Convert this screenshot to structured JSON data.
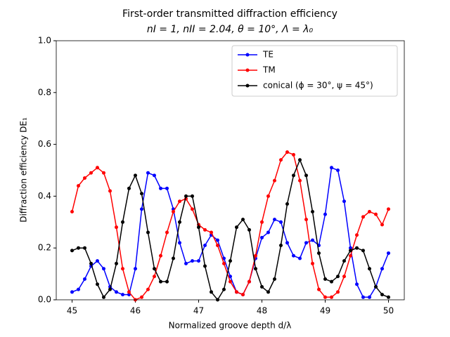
{
  "chart_data": {
    "type": "line",
    "title": "First-order transmitted diffraction efficiency",
    "subtitle": "nI = 1, nII = 2.04, θ = 10°, Λ = λ₀",
    "xlabel": "Normalized groove depth d/λ",
    "ylabel": "Diffraction efficiency DE₁",
    "x": [
      45.0,
      45.1,
      45.2,
      45.3,
      45.4,
      45.5,
      45.6,
      45.7,
      45.8,
      45.9,
      46.0,
      46.1,
      46.2,
      46.3,
      46.4,
      46.5,
      46.6,
      46.7,
      46.8,
      46.9,
      47.0,
      47.1,
      47.2,
      47.3,
      47.4,
      47.5,
      47.6,
      47.7,
      47.8,
      47.9,
      48.0,
      48.1,
      48.2,
      48.3,
      48.4,
      48.5,
      48.6,
      48.7,
      48.8,
      48.9,
      49.0,
      49.1,
      49.2,
      49.3,
      49.4,
      49.5,
      49.6,
      49.7,
      49.8,
      49.9,
      50.0
    ],
    "series": [
      {
        "name": "TE",
        "color": "#0000ff",
        "values": [
          0.03,
          0.04,
          0.08,
          0.13,
          0.15,
          0.12,
          0.05,
          0.03,
          0.02,
          0.02,
          0.12,
          0.35,
          0.49,
          0.48,
          0.43,
          0.43,
          0.35,
          0.22,
          0.14,
          0.15,
          0.15,
          0.21,
          0.25,
          0.23,
          0.16,
          0.09,
          0.03,
          0.02,
          0.07,
          0.16,
          0.24,
          0.26,
          0.31,
          0.3,
          0.22,
          0.17,
          0.16,
          0.22,
          0.23,
          0.21,
          0.33,
          0.51,
          0.5,
          0.38,
          0.2,
          0.06,
          0.01,
          0.01,
          0.05,
          0.12,
          0.18
        ]
      },
      {
        "name": "TM",
        "color": "#ff0000",
        "values": [
          0.34,
          0.44,
          0.47,
          0.49,
          0.51,
          0.49,
          0.42,
          0.28,
          0.12,
          0.03,
          0.0,
          0.01,
          0.04,
          0.09,
          0.17,
          0.26,
          0.34,
          0.38,
          0.39,
          0.35,
          0.29,
          0.27,
          0.26,
          0.21,
          0.14,
          0.07,
          0.03,
          0.02,
          0.07,
          0.17,
          0.3,
          0.4,
          0.46,
          0.54,
          0.57,
          0.56,
          0.46,
          0.31,
          0.14,
          0.04,
          0.01,
          0.01,
          0.03,
          0.09,
          0.17,
          0.25,
          0.32,
          0.34,
          0.33,
          0.29,
          0.35
        ]
      },
      {
        "name": "conical  (ϕ = 30°, ψ = 45°)",
        "color": "#000000",
        "values": [
          0.19,
          0.2,
          0.2,
          0.14,
          0.06,
          0.01,
          0.04,
          0.14,
          0.3,
          0.43,
          0.48,
          0.41,
          0.26,
          0.12,
          0.07,
          0.07,
          0.16,
          0.3,
          0.4,
          0.4,
          0.28,
          0.13,
          0.03,
          0.0,
          0.04,
          0.15,
          0.28,
          0.31,
          0.27,
          0.12,
          0.05,
          0.03,
          0.08,
          0.21,
          0.37,
          0.48,
          0.54,
          0.48,
          0.34,
          0.18,
          0.08,
          0.07,
          0.09,
          0.15,
          0.19,
          0.2,
          0.19,
          0.12,
          0.05,
          0.02,
          0.01
        ]
      }
    ],
    "xlim": [
      44.75,
      50.25
    ],
    "xticks": [
      45,
      46,
      47,
      48,
      49,
      50
    ],
    "ylim": [
      0,
      1
    ],
    "yticks": [
      {
        "value": 0,
        "label": "0.0"
      },
      {
        "value": 0.2,
        "label": "0.2"
      },
      {
        "value": 0.4,
        "label": "0.4"
      },
      {
        "value": 0.6,
        "label": "0.6"
      },
      {
        "value": 0.8,
        "label": "0.8"
      },
      {
        "value": 1,
        "label": "1.0"
      }
    ],
    "legend": "upper right"
  }
}
